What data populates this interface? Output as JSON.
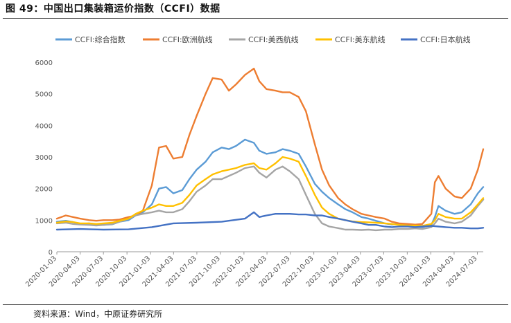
{
  "figure_title": "图 49：中国出口集装箱运价指数（CCFI）数据",
  "source_note": "资料来源：Wind，中原证券研究所",
  "chart_data": {
    "type": "line",
    "title": "",
    "xlabel": "",
    "ylabel": "",
    "ylim": [
      0,
      6000
    ],
    "yticks": [
      0,
      1000,
      2000,
      3000,
      4000,
      5000,
      6000
    ],
    "xticks": [
      "2020-01-03",
      "2020-04-03",
      "2020-07-03",
      "2020-10-03",
      "2021-01-03",
      "2021-04-03",
      "2021-07-03",
      "2021-10-03",
      "2022-01-03",
      "2022-04-03",
      "2022-07-03",
      "2022-10-03",
      "2023-01-03",
      "2023-04-03",
      "2023-07-03",
      "2023-10-03",
      "2024-01-03",
      "2024-04-03",
      "2024-07-03"
    ],
    "grid": false,
    "legend_position": "top",
    "series": [
      {
        "name": "CCFI:综合指数",
        "color": "#5B9BD5",
        "x": [
          "2020-01-03",
          "2020-02-07",
          "2020-03-06",
          "2020-04-03",
          "2020-05-08",
          "2020-06-05",
          "2020-07-03",
          "2020-08-07",
          "2020-09-04",
          "2020-10-09",
          "2020-11-06",
          "2020-12-04",
          "2021-01-08",
          "2021-02-05",
          "2021-03-05",
          "2021-04-02",
          "2021-05-07",
          "2021-06-04",
          "2021-07-02",
          "2021-08-06",
          "2021-09-03",
          "2021-10-08",
          "2021-11-05",
          "2021-12-03",
          "2022-01-07",
          "2022-02-11",
          "2022-03-04",
          "2022-04-01",
          "2022-05-06",
          "2022-06-03",
          "2022-07-01",
          "2022-08-05",
          "2022-09-02",
          "2022-10-07",
          "2022-11-04",
          "2022-12-02",
          "2023-01-06",
          "2023-02-03",
          "2023-03-03",
          "2023-04-07",
          "2023-05-05",
          "2023-06-02",
          "2023-07-07",
          "2023-08-04",
          "2023-09-01",
          "2023-10-06",
          "2023-11-03",
          "2023-12-01",
          "2024-01-05",
          "2024-01-19",
          "2024-02-02",
          "2024-03-01",
          "2024-04-05",
          "2024-05-03",
          "2024-06-07",
          "2024-07-05",
          "2024-07-26"
        ],
        "values": [
          950,
          980,
          940,
          880,
          900,
          870,
          850,
          870,
          950,
          1000,
          1150,
          1250,
          1500,
          2000,
          2050,
          1850,
          1950,
          2300,
          2600,
          2850,
          3150,
          3300,
          3250,
          3350,
          3550,
          3450,
          3200,
          3100,
          3150,
          3250,
          3200,
          3100,
          2700,
          2150,
          1900,
          1700,
          1500,
          1350,
          1250,
          1100,
          1050,
          980,
          900,
          860,
          880,
          850,
          800,
          780,
          850,
          1100,
          1450,
          1300,
          1200,
          1250,
          1500,
          1850,
          2050
        ]
      },
      {
        "name": "CCFI:欧洲航线",
        "color": "#ED7D31",
        "x": [
          "2020-01-03",
          "2020-02-07",
          "2020-03-06",
          "2020-04-03",
          "2020-05-08",
          "2020-06-05",
          "2020-07-03",
          "2020-08-07",
          "2020-09-04",
          "2020-10-09",
          "2020-11-06",
          "2020-12-04",
          "2021-01-08",
          "2021-02-05",
          "2021-03-05",
          "2021-04-02",
          "2021-05-07",
          "2021-06-04",
          "2021-07-02",
          "2021-08-06",
          "2021-09-03",
          "2021-10-08",
          "2021-11-05",
          "2021-12-03",
          "2022-01-07",
          "2022-02-11",
          "2022-03-04",
          "2022-04-01",
          "2022-05-06",
          "2022-06-03",
          "2022-07-01",
          "2022-08-05",
          "2022-09-02",
          "2022-10-07",
          "2022-11-04",
          "2022-12-02",
          "2023-01-06",
          "2023-02-03",
          "2023-03-03",
          "2023-04-07",
          "2023-05-05",
          "2023-06-02",
          "2023-07-07",
          "2023-08-04",
          "2023-09-01",
          "2023-10-06",
          "2023-11-03",
          "2023-12-01",
          "2024-01-05",
          "2024-01-19",
          "2024-02-02",
          "2024-03-01",
          "2024-04-05",
          "2024-05-03",
          "2024-06-07",
          "2024-07-05",
          "2024-07-26"
        ],
        "values": [
          1050,
          1150,
          1100,
          1050,
          1000,
          980,
          1000,
          1000,
          1020,
          1100,
          1150,
          1300,
          2100,
          3300,
          3350,
          2950,
          3000,
          3700,
          4300,
          5000,
          5500,
          5450,
          5100,
          5300,
          5600,
          5800,
          5400,
          5150,
          5100,
          5050,
          5050,
          4900,
          4450,
          3400,
          2600,
          2100,
          1700,
          1500,
          1350,
          1200,
          1150,
          1100,
          1050,
          950,
          900,
          880,
          860,
          880,
          1200,
          2200,
          2400,
          2000,
          1750,
          1700,
          2000,
          2600,
          3250
        ]
      },
      {
        "name": "CCFI:美西航线",
        "color": "#A5A5A5",
        "x": [
          "2020-01-03",
          "2020-02-07",
          "2020-03-06",
          "2020-04-03",
          "2020-05-08",
          "2020-06-05",
          "2020-07-03",
          "2020-08-07",
          "2020-09-04",
          "2020-10-09",
          "2020-11-06",
          "2020-12-04",
          "2021-01-08",
          "2021-02-05",
          "2021-03-05",
          "2021-04-02",
          "2021-05-07",
          "2021-06-04",
          "2021-07-02",
          "2021-08-06",
          "2021-09-03",
          "2021-10-08",
          "2021-11-05",
          "2021-12-03",
          "2022-01-07",
          "2022-02-11",
          "2022-03-04",
          "2022-04-01",
          "2022-05-06",
          "2022-06-03",
          "2022-07-01",
          "2022-08-05",
          "2022-09-02",
          "2022-10-07",
          "2022-11-04",
          "2022-12-02",
          "2023-01-06",
          "2023-02-03",
          "2023-03-03",
          "2023-04-07",
          "2023-05-05",
          "2023-06-02",
          "2023-07-07",
          "2023-08-04",
          "2023-09-01",
          "2023-10-06",
          "2023-11-03",
          "2023-12-01",
          "2024-01-05",
          "2024-01-19",
          "2024-02-02",
          "2024-03-01",
          "2024-04-05",
          "2024-05-03",
          "2024-06-07",
          "2024-07-05",
          "2024-07-26"
        ],
        "values": [
          900,
          920,
          880,
          860,
          850,
          830,
          850,
          880,
          950,
          1050,
          1150,
          1200,
          1250,
          1300,
          1250,
          1250,
          1350,
          1600,
          1900,
          2100,
          2300,
          2300,
          2400,
          2500,
          2650,
          2700,
          2500,
          2350,
          2600,
          2700,
          2550,
          2300,
          1800,
          1200,
          900,
          800,
          750,
          700,
          700,
          690,
          700,
          680,
          700,
          700,
          720,
          720,
          740,
          720,
          780,
          900,
          1050,
          950,
          900,
          950,
          1150,
          1450,
          1650
        ]
      },
      {
        "name": "CCFI:美东航线",
        "color": "#FFC000",
        "x": [
          "2020-01-03",
          "2020-02-07",
          "2020-03-06",
          "2020-04-03",
          "2020-05-08",
          "2020-06-05",
          "2020-07-03",
          "2020-08-07",
          "2020-09-04",
          "2020-10-09",
          "2020-11-06",
          "2020-12-04",
          "2021-01-08",
          "2021-02-05",
          "2021-03-05",
          "2021-04-02",
          "2021-05-07",
          "2021-06-04",
          "2021-07-02",
          "2021-08-06",
          "2021-09-03",
          "2021-10-08",
          "2021-11-05",
          "2021-12-03",
          "2022-01-07",
          "2022-02-11",
          "2022-03-04",
          "2022-04-01",
          "2022-05-06",
          "2022-06-03",
          "2022-07-01",
          "2022-08-05",
          "2022-09-02",
          "2022-10-07",
          "2022-11-04",
          "2022-12-02",
          "2023-01-06",
          "2023-02-03",
          "2023-03-03",
          "2023-04-07",
          "2023-05-05",
          "2023-06-02",
          "2023-07-07",
          "2023-08-04",
          "2023-09-01",
          "2023-10-06",
          "2023-11-03",
          "2023-12-01",
          "2024-01-05",
          "2024-01-19",
          "2024-02-02",
          "2024-03-01",
          "2024-04-05",
          "2024-05-03",
          "2024-06-07",
          "2024-07-05",
          "2024-07-26"
        ],
        "values": [
          920,
          960,
          940,
          900,
          900,
          880,
          900,
          920,
          980,
          1050,
          1200,
          1300,
          1400,
          1500,
          1450,
          1450,
          1550,
          1800,
          2100,
          2300,
          2450,
          2550,
          2600,
          2650,
          2750,
          2800,
          2650,
          2600,
          2800,
          3000,
          2950,
          2850,
          2400,
          1800,
          1400,
          1200,
          1050,
          1000,
          960,
          940,
          930,
          920,
          900,
          880,
          850,
          830,
          830,
          820,
          880,
          1000,
          1200,
          1100,
          1050,
          1050,
          1250,
          1500,
          1700
        ]
      },
      {
        "name": "CCFI:日本航线",
        "color": "#4472C4",
        "x": [
          "2020-01-03",
          "2020-04-03",
          "2020-07-03",
          "2020-10-09",
          "2021-01-08",
          "2021-04-02",
          "2021-07-02",
          "2021-10-08",
          "2022-01-07",
          "2022-02-11",
          "2022-03-04",
          "2022-04-01",
          "2022-05-06",
          "2022-06-03",
          "2022-07-01",
          "2022-08-05",
          "2022-09-02",
          "2022-10-07",
          "2022-11-04",
          "2022-12-02",
          "2023-01-06",
          "2023-02-03",
          "2023-03-03",
          "2023-04-07",
          "2023-05-05",
          "2023-06-02",
          "2023-07-07",
          "2023-08-04",
          "2023-09-01",
          "2023-10-06",
          "2023-11-03",
          "2023-12-01",
          "2024-01-05",
          "2024-02-02",
          "2024-03-01",
          "2024-04-05",
          "2024-05-03",
          "2024-06-07",
          "2024-07-05",
          "2024-07-26"
        ],
        "values": [
          700,
          720,
          700,
          710,
          780,
          900,
          920,
          950,
          1050,
          1250,
          1100,
          1150,
          1200,
          1200,
          1200,
          1180,
          1180,
          1150,
          1150,
          1100,
          1050,
          1000,
          950,
          900,
          850,
          850,
          800,
          780,
          800,
          800,
          780,
          800,
          820,
          800,
          780,
          760,
          760,
          740,
          740,
          760
        ]
      }
    ]
  }
}
